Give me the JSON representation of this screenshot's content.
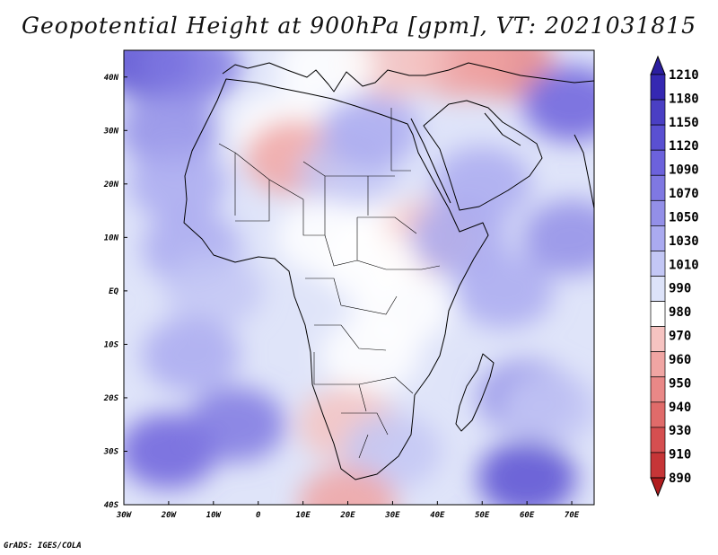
{
  "title": "Geopotential Height at 900hPa [gpm], VT: 2021031815",
  "credit": "GrADS: IGES/COLA",
  "map": {
    "variable": "Geopotential Height",
    "level": "900hPa",
    "units": "gpm",
    "valid_time": "2021031815",
    "lon_range": [
      -30,
      75
    ],
    "lat_range": [
      -40,
      45
    ],
    "x_ticks": [
      {
        "lon": -30,
        "label": "30W"
      },
      {
        "lon": -20,
        "label": "20W"
      },
      {
        "lon": -10,
        "label": "10W"
      },
      {
        "lon": 0,
        "label": "0"
      },
      {
        "lon": 10,
        "label": "10E"
      },
      {
        "lon": 20,
        "label": "20E"
      },
      {
        "lon": 30,
        "label": "30E"
      },
      {
        "lon": 40,
        "label": "40E"
      },
      {
        "lon": 50,
        "label": "50E"
      },
      {
        "lon": 60,
        "label": "60E"
      },
      {
        "lon": 70,
        "label": "70E"
      }
    ],
    "y_ticks": [
      {
        "lat": 40,
        "label": "40N"
      },
      {
        "lat": 30,
        "label": "30N"
      },
      {
        "lat": 20,
        "label": "20N"
      },
      {
        "lat": 10,
        "label": "10N"
      },
      {
        "lat": 0,
        "label": "EQ"
      },
      {
        "lat": -10,
        "label": "10S"
      },
      {
        "lat": -20,
        "label": "20S"
      },
      {
        "lat": -30,
        "label": "30S"
      },
      {
        "lat": -40,
        "label": "40S"
      }
    ],
    "field_regions": [
      {
        "lon": -25,
        "lat": 43,
        "value": 1090
      },
      {
        "lon": -15,
        "lat": 42,
        "value": 1060
      },
      {
        "lon": -20,
        "lat": 30,
        "value": 1040
      },
      {
        "lon": -18,
        "lat": 20,
        "value": 1020
      },
      {
        "lon": -15,
        "lat": 8,
        "value": 1015
      },
      {
        "lon": -10,
        "lat": 0,
        "value": 1005
      },
      {
        "lon": -15,
        "lat": -12,
        "value": 1020
      },
      {
        "lon": -20,
        "lat": -30,
        "value": 1080
      },
      {
        "lon": -5,
        "lat": -25,
        "value": 1050
      },
      {
        "lon": 5,
        "lat": 30,
        "value": 975
      },
      {
        "lon": 8,
        "lat": 25,
        "value": 955
      },
      {
        "lon": 20,
        "lat": 22,
        "value": 995
      },
      {
        "lon": 25,
        "lat": 30,
        "value": 1020
      },
      {
        "lon": 30,
        "lat": 10,
        "value": 970
      },
      {
        "lon": 38,
        "lat": 10,
        "value": 960
      },
      {
        "lon": 15,
        "lat": 10,
        "value": 975
      },
      {
        "lon": 25,
        "lat": 5,
        "value": 975
      },
      {
        "lon": 32,
        "lat": -3,
        "value": 970
      },
      {
        "lon": 25,
        "lat": -12,
        "value": 975
      },
      {
        "lon": 20,
        "lat": -25,
        "value": 960
      },
      {
        "lon": 30,
        "lat": -30,
        "value": 1000
      },
      {
        "lon": 20,
        "lat": -40,
        "value": 950
      },
      {
        "lon": 45,
        "lat": 10,
        "value": 1010
      },
      {
        "lon": 50,
        "lat": 20,
        "value": 1020
      },
      {
        "lon": 55,
        "lat": 0,
        "value": 1025
      },
      {
        "lon": 60,
        "lat": -20,
        "value": 1030
      },
      {
        "lon": 65,
        "lat": -22,
        "value": 995
      },
      {
        "lon": 60,
        "lat": -35,
        "value": 1090
      },
      {
        "lon": 70,
        "lat": 10,
        "value": 1030
      },
      {
        "lon": 55,
        "lat": 43,
        "value": 940
      },
      {
        "lon": 45,
        "lat": 43,
        "value": 955
      },
      {
        "lon": 30,
        "lat": 43,
        "value": 965
      },
      {
        "lon": 15,
        "lat": 42,
        "value": 970
      },
      {
        "lon": 70,
        "lat": 35,
        "value": 1070
      }
    ]
  },
  "colorbar": {
    "levels": [
      "1210",
      "1180",
      "1150",
      "1120",
      "1090",
      "1070",
      "1050",
      "1030",
      "1010",
      "990",
      "980",
      "970",
      "960",
      "950",
      "940",
      "930",
      "910",
      "890"
    ],
    "colors": [
      "#2b1ea0",
      "#3528b2",
      "#4a3fc4",
      "#5a50d2",
      "#6c62dc",
      "#7f78e2",
      "#938fe8",
      "#aaaaf0",
      "#c3c7f5",
      "#dde3f9",
      "#ffffff",
      "#f6c3c1",
      "#f0a5a3",
      "#e98887",
      "#e06b6a",
      "#d54f50",
      "#c63537",
      "#b01c1e"
    ]
  }
}
